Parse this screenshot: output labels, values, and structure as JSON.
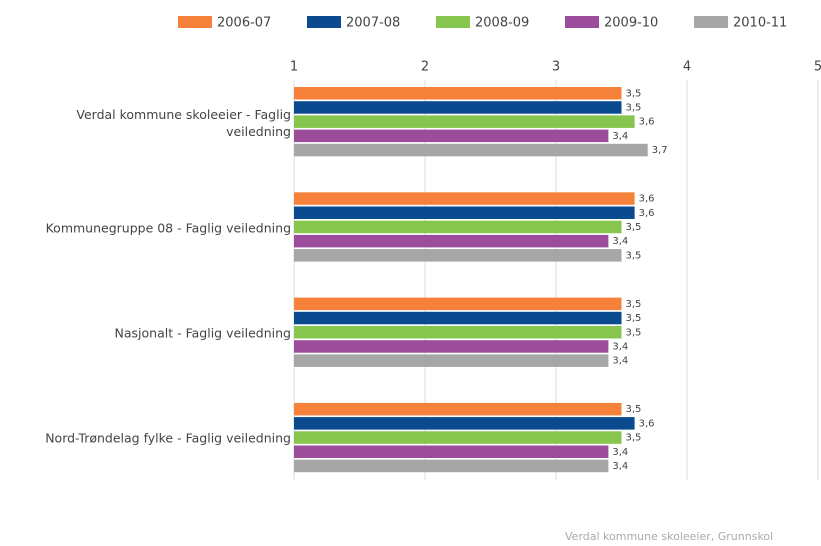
{
  "chart_data": {
    "type": "bar",
    "orientation": "horizontal",
    "categories": [
      "Verdal kommune skoleeier - Faglig veiledning",
      "Kommunegruppe 08 - Faglig veiledning",
      "Nasjonalt - Faglig veiledning",
      "Nord-Trøndelag fylke - Faglig veiledning"
    ],
    "series": [
      {
        "name": "2006-07",
        "color": "#f5813a",
        "values": [
          3.5,
          3.6,
          3.5,
          3.5
        ],
        "value_labels": [
          "3,5",
          "3,6",
          "3,5",
          "3,5"
        ]
      },
      {
        "name": "2007-08",
        "color": "#0b4a8f",
        "values": [
          3.5,
          3.6,
          3.5,
          3.6
        ],
        "value_labels": [
          "3,5",
          "3,6",
          "3,5",
          "3,6"
        ]
      },
      {
        "name": "2008-09",
        "color": "#86c54e",
        "values": [
          3.6,
          3.5,
          3.5,
          3.5
        ],
        "value_labels": [
          "3,6",
          "3,5",
          "3,5",
          "3,5"
        ]
      },
      {
        "name": "2009-10",
        "color": "#9b4c9a",
        "values": [
          3.4,
          3.4,
          3.4,
          3.4
        ],
        "value_labels": [
          "3,4",
          "3,4",
          "3,4",
          "3,4"
        ]
      },
      {
        "name": "2010-11",
        "color": "#a6a6a6",
        "values": [
          3.7,
          3.5,
          3.4,
          3.4
        ],
        "value_labels": [
          "3,7",
          "3,5",
          "3,4",
          "3,4"
        ]
      }
    ],
    "xlim": [
      1,
      5
    ],
    "xticks": [
      1,
      2,
      3,
      4,
      5
    ],
    "grid": true,
    "legend": "top",
    "source": "Verdal kommune skoleeier, Grunnskol"
  }
}
